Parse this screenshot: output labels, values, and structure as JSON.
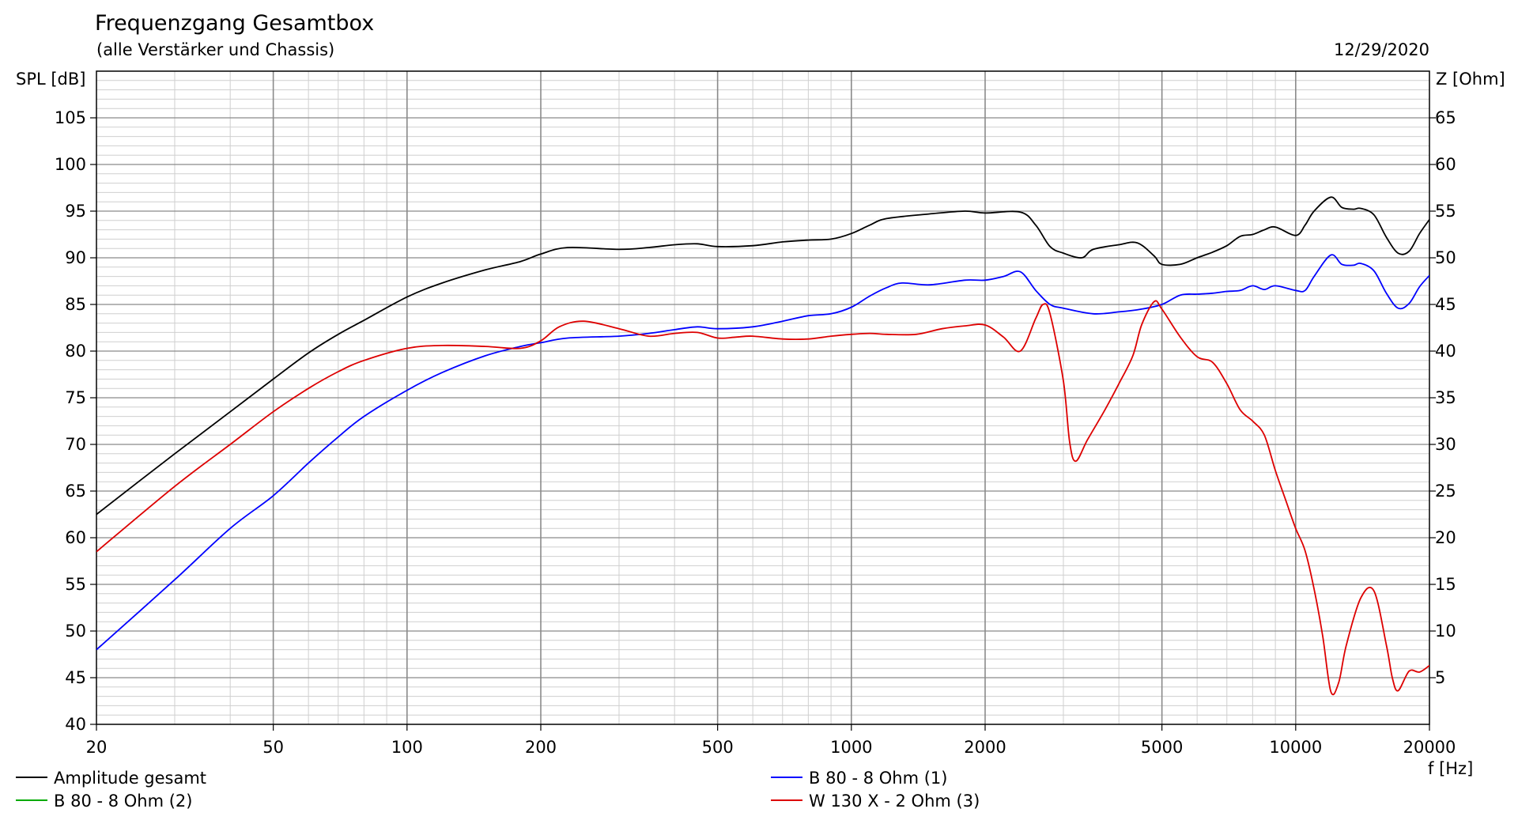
{
  "chart_data": {
    "type": "line",
    "title": "Frequenzgang Gesamtbox",
    "subtitle": "(alle Verstärker und Chassis)",
    "date": "12/29/2020",
    "ylabel": "SPL [dB]",
    "y2label": "Z [Ohm]",
    "xlabel": "f [Hz]",
    "xscale": "log",
    "xlim": [
      20,
      20000
    ],
    "ylim": [
      40,
      110
    ],
    "y2lim": [
      0,
      70
    ],
    "grid": true,
    "x_ticks": [
      "20",
      "50",
      "100",
      "200",
      "500",
      "1000",
      "2000",
      "5000",
      "10000",
      "20000"
    ],
    "y_ticks": [
      "105",
      "100",
      "95",
      "90",
      "85",
      "80",
      "75",
      "70",
      "65",
      "60",
      "55",
      "50",
      "45",
      "40"
    ],
    "y2_ticks": [
      "65",
      "60",
      "55",
      "50",
      "45",
      "40",
      "35",
      "30",
      "25",
      "20",
      "15",
      "10",
      "5"
    ],
    "legend_position": "bottom",
    "series": [
      {
        "name": "Amplitude gesamt",
        "color": "#000000",
        "x": [
          20,
          30,
          40,
          50,
          60,
          70,
          80,
          100,
          120,
          150,
          180,
          200,
          230,
          300,
          350,
          400,
          450,
          500,
          600,
          700,
          800,
          900,
          1000,
          1100,
          1200,
          1500,
          1800,
          2000,
          2400,
          2600,
          2800,
          3000,
          3300,
          3500,
          4000,
          4400,
          4800,
          5000,
          5500,
          6000,
          6500,
          7000,
          7500,
          8000,
          8500,
          9000,
          10000,
          10500,
          11000,
          12000,
          12700,
          13500,
          14000,
          15000,
          16000,
          17000,
          18000,
          19000,
          20000
        ],
        "values": [
          62.5,
          69,
          73.5,
          77,
          79.8,
          81.8,
          83.3,
          85.8,
          87.3,
          88.7,
          89.6,
          90.4,
          91.1,
          90.9,
          91.1,
          91.4,
          91.5,
          91.2,
          91.3,
          91.7,
          91.9,
          92.0,
          92.6,
          93.5,
          94.2,
          94.7,
          95.0,
          94.8,
          94.9,
          93.5,
          91.2,
          90.5,
          90.0,
          90.9,
          91.4,
          91.6,
          90.2,
          89.3,
          89.3,
          90.0,
          90.6,
          91.3,
          92.3,
          92.5,
          93.0,
          93.3,
          92.4,
          93.5,
          95.0,
          96.5,
          95.4,
          95.2,
          95.3,
          94.6,
          92.2,
          90.5,
          90.7,
          92.6,
          94.1
        ]
      },
      {
        "name": "B 80 - 8 Ohm (1)",
        "color": "#0000ff",
        "x": [
          20,
          30,
          40,
          50,
          60,
          70,
          80,
          100,
          120,
          150,
          180,
          200,
          230,
          300,
          350,
          400,
          450,
          500,
          600,
          700,
          800,
          900,
          1000,
          1100,
          1200,
          1300,
          1500,
          1800,
          2000,
          2200,
          2400,
          2600,
          2800,
          3000,
          3500,
          4000,
          4500,
          5000,
          5500,
          6000,
          6500,
          7000,
          7500,
          8000,
          8500,
          9000,
          10000,
          10500,
          11000,
          12000,
          12700,
          13500,
          14000,
          15000,
          16000,
          17000,
          18000,
          19000,
          20000
        ],
        "values": [
          48,
          55.5,
          61,
          64.5,
          68,
          70.8,
          73,
          75.8,
          77.7,
          79.5,
          80.5,
          80.9,
          81.4,
          81.6,
          81.9,
          82.3,
          82.6,
          82.4,
          82.6,
          83.2,
          83.8,
          84.0,
          84.7,
          85.9,
          86.8,
          87.3,
          87.1,
          87.6,
          87.6,
          88.0,
          88.5,
          86.5,
          85.0,
          84.6,
          84.0,
          84.2,
          84.5,
          85.0,
          86.0,
          86.1,
          86.2,
          86.4,
          86.5,
          87.0,
          86.6,
          87.0,
          86.5,
          86.5,
          88.0,
          90.3,
          89.3,
          89.2,
          89.4,
          88.6,
          86.2,
          84.6,
          85.1,
          86.9,
          88.1
        ]
      },
      {
        "name": "B 80 - 8 Ohm (2)",
        "color": "#00aa00",
        "x": [],
        "values": []
      },
      {
        "name": "W 130 X - 2 Ohm (3)",
        "color": "#dd0000",
        "x": [
          20,
          30,
          40,
          50,
          60,
          70,
          80,
          100,
          120,
          150,
          180,
          200,
          220,
          250,
          300,
          350,
          400,
          450,
          500,
          550,
          600,
          700,
          800,
          900,
          1000,
          1100,
          1200,
          1400,
          1600,
          1800,
          2000,
          2200,
          2400,
          2600,
          2700,
          2800,
          3000,
          3100,
          3200,
          3400,
          3700,
          4000,
          4300,
          4500,
          4800,
          5000,
          5500,
          6000,
          6500,
          7000,
          7500,
          8000,
          8500,
          9000,
          9500,
          10000,
          10500,
          11000,
          11500,
          12000,
          12500,
          13000,
          14000,
          15000,
          16000,
          16500,
          17000,
          18000,
          19000,
          20000
        ],
        "values": [
          58.5,
          65.5,
          70,
          73.5,
          76,
          77.8,
          79.0,
          80.3,
          80.6,
          80.5,
          80.3,
          81.1,
          82.6,
          83.2,
          82.4,
          81.6,
          81.9,
          82.0,
          81.4,
          81.5,
          81.6,
          81.3,
          81.3,
          81.6,
          81.8,
          81.9,
          81.8,
          81.8,
          82.4,
          82.7,
          82.8,
          81.5,
          80.0,
          83.5,
          85.0,
          84.0,
          76.8,
          70.2,
          68.2,
          70.5,
          73.5,
          76.5,
          79.5,
          82.8,
          85.3,
          84.5,
          81.5,
          79.4,
          78.8,
          76.5,
          73.7,
          72.5,
          71.0,
          67.2,
          64.0,
          61.0,
          58.6,
          54.5,
          49.5,
          43.5,
          44.5,
          48.5,
          53.5,
          54.3,
          48.5,
          45.0,
          43.6,
          45.7,
          45.6,
          46.3
        ]
      }
    ]
  }
}
